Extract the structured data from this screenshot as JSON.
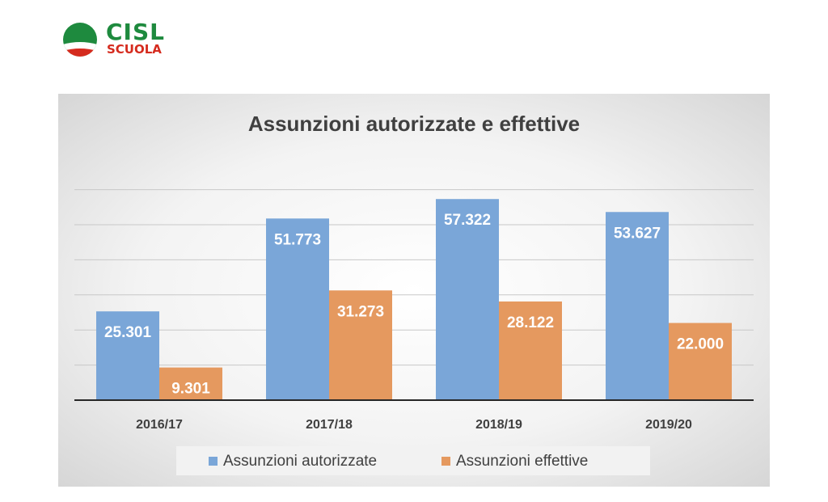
{
  "logo": {
    "brand": "CISL",
    "sub": "SCUOLA",
    "colors": {
      "green": "#1e8a3e",
      "red": "#d52b1e"
    }
  },
  "chart_data": {
    "type": "bar",
    "title": "Assunzioni autorizzate e effettive",
    "categories": [
      "2016/17",
      "2017/18",
      "2018/19",
      "2019/20"
    ],
    "series": [
      {
        "name": "Assunzioni autorizzate",
        "values": [
          25301,
          51773,
          57322,
          53627
        ],
        "labels": [
          "25.301",
          "51.773",
          "57.322",
          "53.627"
        ],
        "color": "#7aa6d8"
      },
      {
        "name": "Assunzioni effettive",
        "values": [
          9301,
          31273,
          28122,
          22000
        ],
        "labels": [
          "9.301",
          "31.273",
          "28.122",
          "22.000"
        ],
        "color": "#e5995f"
      }
    ],
    "ylim": [
      0,
      60000
    ],
    "grid": true,
    "legend_position": "bottom"
  }
}
